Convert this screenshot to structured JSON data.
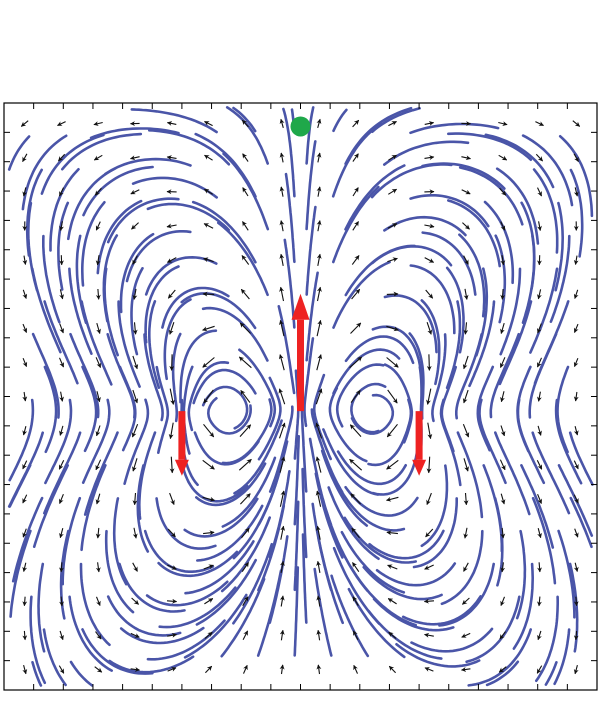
{
  "figure": {
    "description_visible": "",
    "colors": {
      "streamline": "#4a55a8",
      "arrow": "#111111",
      "force_arrow": "#ee2222",
      "marker": "#1fa84a",
      "frame": "#000000",
      "background": "#ffffff"
    },
    "domain": {
      "x": [
        -1,
        1
      ],
      "y": [
        -1,
        1
      ]
    },
    "ticks_per_side": 21,
    "vector_grid": {
      "nx": 16,
      "ny": 17
    },
    "streamlines": {
      "seeds_x": 15,
      "seeds_y": 17,
      "segment_steps": 26
    },
    "field": {
      "type": "sum-of-point-forces",
      "sources": [
        {
          "name": "center-force",
          "x": 0,
          "y": -0.05,
          "fx": 0,
          "fy": 1
        },
        {
          "name": "left-force",
          "x": -0.4,
          "y": -0.05,
          "fx": 0,
          "fy": -0.5
        },
        {
          "name": "right-force",
          "x": 0.4,
          "y": -0.05,
          "fx": 0,
          "fy": -0.5
        }
      ],
      "boundary": "no-slip-box"
    },
    "forces": [
      {
        "name": "center-force",
        "x": 0.0,
        "y_base": -0.05,
        "y_tip": 0.35,
        "direction": "up"
      },
      {
        "name": "left-force",
        "x": -0.4,
        "y_base": -0.05,
        "y_tip": -0.27,
        "direction": "down"
      },
      {
        "name": "right-force",
        "x": 0.4,
        "y_base": -0.05,
        "y_tip": -0.27,
        "direction": "down"
      }
    ],
    "marker": {
      "name": "green-dot",
      "x": 0.0,
      "y": 0.92
    }
  }
}
